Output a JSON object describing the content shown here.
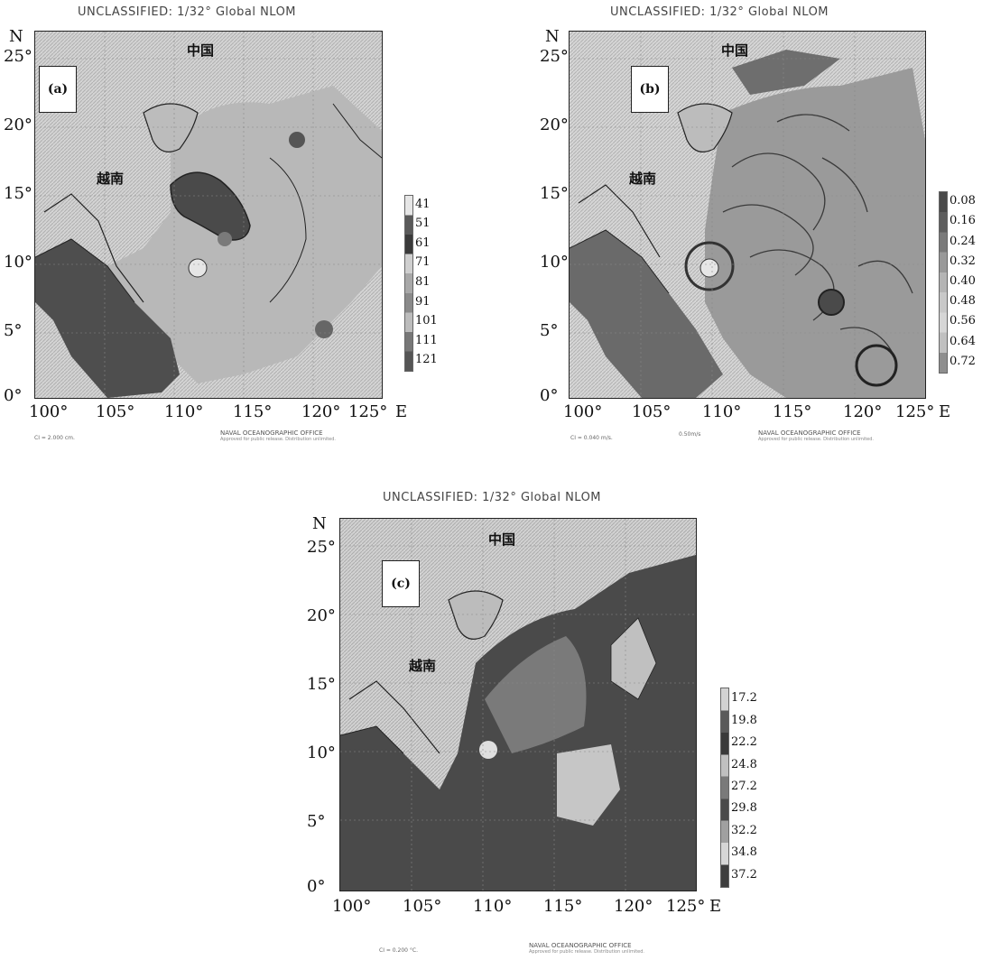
{
  "common": {
    "title": "UNCLASSIFIED: 1/32° Global NLOM",
    "lat_axis": "N",
    "lon_axis": "E",
    "lat_ticks": [
      "25°",
      "20°",
      "15°",
      "10°",
      "5°",
      "0°"
    ],
    "lon_ticks": [
      "100°",
      "105°",
      "110°",
      "115°",
      "120°",
      "125°"
    ],
    "place_china": "中国",
    "place_vietnam": "越南",
    "office": "NAVAL OCEANOGRAPHIC OFFICE",
    "office_sub": "Approved for public release. Distribution unlimited."
  },
  "panels": [
    {
      "tag": "(a)",
      "ci": "CI = 2.000 cm.",
      "scale": "",
      "colorbar": [
        "41",
        "51",
        "61",
        "71",
        "81",
        "91",
        "101",
        "111",
        "121"
      ],
      "colors": [
        "#e6e6e6",
        "#5a5a5a",
        "#3a3a3a",
        "#cfcfcf",
        "#a8a8a8",
        "#8a8a8a",
        "#bcbcbc",
        "#777777",
        "#555555"
      ]
    },
    {
      "tag": "(b)",
      "ci": "CI = 0.040 m/s.",
      "scale": "0.50m/s",
      "colorbar": [
        "0.08",
        "0.16",
        "0.24",
        "0.32",
        "0.40",
        "0.48",
        "0.56",
        "0.64",
        "0.72"
      ],
      "colors": [
        "#4a4a4a",
        "#5e5e5e",
        "#7a7a7a",
        "#999999",
        "#b4b4b4",
        "#c8c8c8",
        "#d6d6d6",
        "#c0c0c0",
        "#8e8e8e"
      ]
    },
    {
      "tag": "(c)",
      "ci": "CI = 0.200 °C.",
      "scale": "",
      "colorbar": [
        "17.2",
        "19.8",
        "22.2",
        "24.8",
        "27.2",
        "29.8",
        "32.2",
        "34.8",
        "37.2"
      ],
      "colors": [
        "#d2d2d2",
        "#5a5a5a",
        "#3a3a3a",
        "#c0c0c0",
        "#7a7a7a",
        "#4a4a4a",
        "#a0a0a0",
        "#d6d6d6",
        "#3e3e3e"
      ]
    }
  ]
}
